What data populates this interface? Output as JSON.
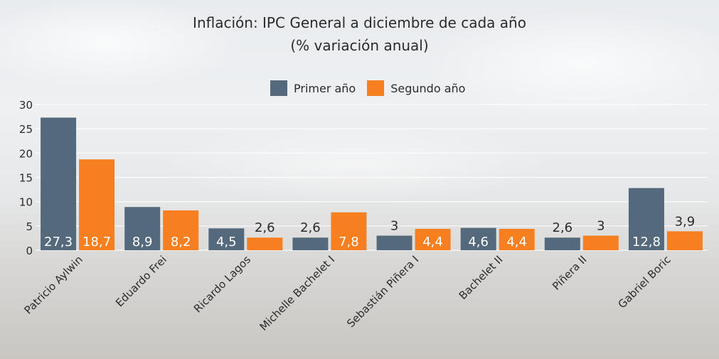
{
  "chart_data": {
    "type": "bar",
    "title": "Inflación: IPC General a diciembre de cada año",
    "subtitle": "(% variación anual)",
    "categories": [
      "Patricio Aylwin",
      "Eduardo Frei",
      "Ricardo Lagos",
      "Michelle Bachelet I",
      "Sebastián Piñera I",
      "Bachelet II",
      "Piñera II",
      "Gabriel Boric"
    ],
    "series": [
      {
        "name": "Primer año",
        "color": "#54697c",
        "values": [
          27.3,
          8.9,
          4.5,
          2.6,
          3,
          4.6,
          2.6,
          12.8
        ],
        "labels": [
          "27,3",
          "8,9",
          "4,5",
          "2,6",
          "3",
          "4,6",
          "2,6",
          "12,8"
        ]
      },
      {
        "name": "Segundo año",
        "color": "#f6801f",
        "values": [
          18.7,
          8.2,
          2.6,
          7.8,
          4.4,
          4.4,
          3,
          3.9
        ],
        "labels": [
          "18,7",
          "8,2",
          "2,6",
          "7,8",
          "4,4",
          "4,4",
          "3",
          "3,9"
        ]
      }
    ],
    "ylim": [
      0,
      30
    ],
    "yticks": [
      "0",
      "5",
      "10",
      "15",
      "20",
      "25",
      "30"
    ],
    "grid": true,
    "legend": "top"
  }
}
